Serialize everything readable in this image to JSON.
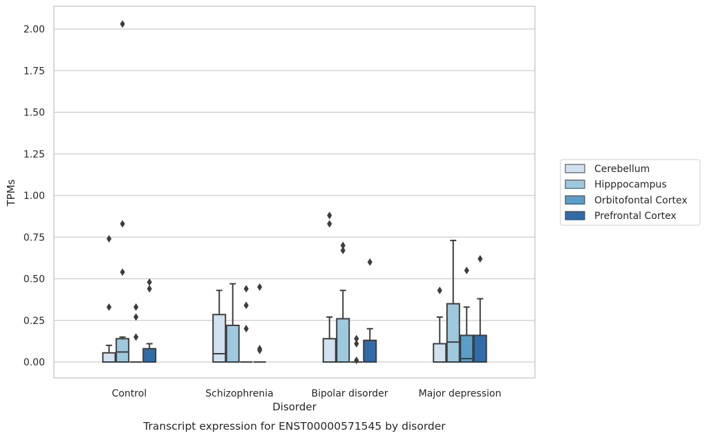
{
  "chart_data": {
    "type": "boxplot",
    "caption": "Transcript expression for ENST00000571545 by disorder",
    "xlabel": "Disorder",
    "ylabel": "TPMs",
    "ylim": [
      -0.1,
      2.13
    ],
    "yticks": [
      0.0,
      0.25,
      0.5,
      0.75,
      1.0,
      1.25,
      1.5,
      1.75,
      2.0
    ],
    "ytick_labels": [
      "0.00",
      "0.25",
      "0.50",
      "0.75",
      "1.00",
      "1.25",
      "1.50",
      "1.75",
      "2.00"
    ],
    "categories": [
      "Control",
      "Schizophrenia",
      "Bipolar disorder",
      "Major depression"
    ],
    "grid": "horizontal",
    "legend_position": "right",
    "series": [
      {
        "name": "Cerebellum",
        "color": "#d1e1ef",
        "boxes": [
          {
            "whislo": 0,
            "q1": 0,
            "med": 0,
            "q3": 0.055,
            "whishi": 0.1,
            "fliers": [
              0.33,
              0.74
            ]
          },
          {
            "whislo": 0,
            "q1": 0,
            "med": 0.05,
            "q3": 0.285,
            "whishi": 0.43,
            "fliers": []
          },
          {
            "whislo": 0,
            "q1": 0,
            "med": 0,
            "q3": 0.14,
            "whishi": 0.27,
            "fliers": [
              0.83,
              0.88
            ]
          },
          {
            "whislo": 0,
            "q1": 0,
            "med": 0,
            "q3": 0.11,
            "whishi": 0.27,
            "fliers": [
              0.43
            ]
          }
        ]
      },
      {
        "name": "Hipppocampus",
        "color": "#9dc9df",
        "boxes": [
          {
            "whislo": 0,
            "q1": 0,
            "med": 0.06,
            "q3": 0.14,
            "whishi": 0.15,
            "fliers": [
              0.54,
              0.83,
              2.03
            ]
          },
          {
            "whislo": 0,
            "q1": 0,
            "med": 0,
            "q3": 0.22,
            "whishi": 0.47,
            "fliers": []
          },
          {
            "whislo": 0,
            "q1": 0,
            "med": 0,
            "q3": 0.26,
            "whishi": 0.43,
            "fliers": [
              0.67,
              0.7
            ]
          },
          {
            "whislo": 0,
            "q1": 0,
            "med": 0.12,
            "q3": 0.35,
            "whishi": 0.73,
            "fliers": []
          }
        ]
      },
      {
        "name": "Orbitofontal Cortex",
        "color": "#5b9ec9",
        "boxes": [
          {
            "whislo": 0,
            "q1": 0,
            "med": 0,
            "q3": 0,
            "whishi": 0,
            "fliers": [
              0.15,
              0.27,
              0.33
            ]
          },
          {
            "whislo": 0,
            "q1": 0,
            "med": 0,
            "q3": 0,
            "whishi": 0,
            "fliers": [
              0.2,
              0.34,
              0.44
            ]
          },
          {
            "whislo": 0,
            "q1": 0,
            "med": 0,
            "q3": 0,
            "whishi": 0,
            "fliers": [
              0.01,
              0.11,
              0.14
            ]
          },
          {
            "whislo": 0,
            "q1": 0,
            "med": 0.02,
            "q3": 0.16,
            "whishi": 0.33,
            "fliers": [
              0.55
            ]
          }
        ]
      },
      {
        "name": "Prefrontal Cortex",
        "color": "#2f6ca9",
        "boxes": [
          {
            "whislo": 0,
            "q1": 0,
            "med": 0,
            "q3": 0.08,
            "whishi": 0.11,
            "fliers": [
              0.44,
              0.48
            ]
          },
          {
            "whislo": 0,
            "q1": 0,
            "med": 0,
            "q3": 0,
            "whishi": 0,
            "fliers": [
              0.07,
              0.08,
              0.45
            ]
          },
          {
            "whislo": 0,
            "q1": 0,
            "med": 0,
            "q3": 0.13,
            "whishi": 0.2,
            "fliers": [
              0.6
            ]
          },
          {
            "whislo": 0,
            "q1": 0,
            "med": 0,
            "q3": 0.16,
            "whishi": 0.38,
            "fliers": [
              0.62
            ]
          }
        ]
      }
    ]
  }
}
